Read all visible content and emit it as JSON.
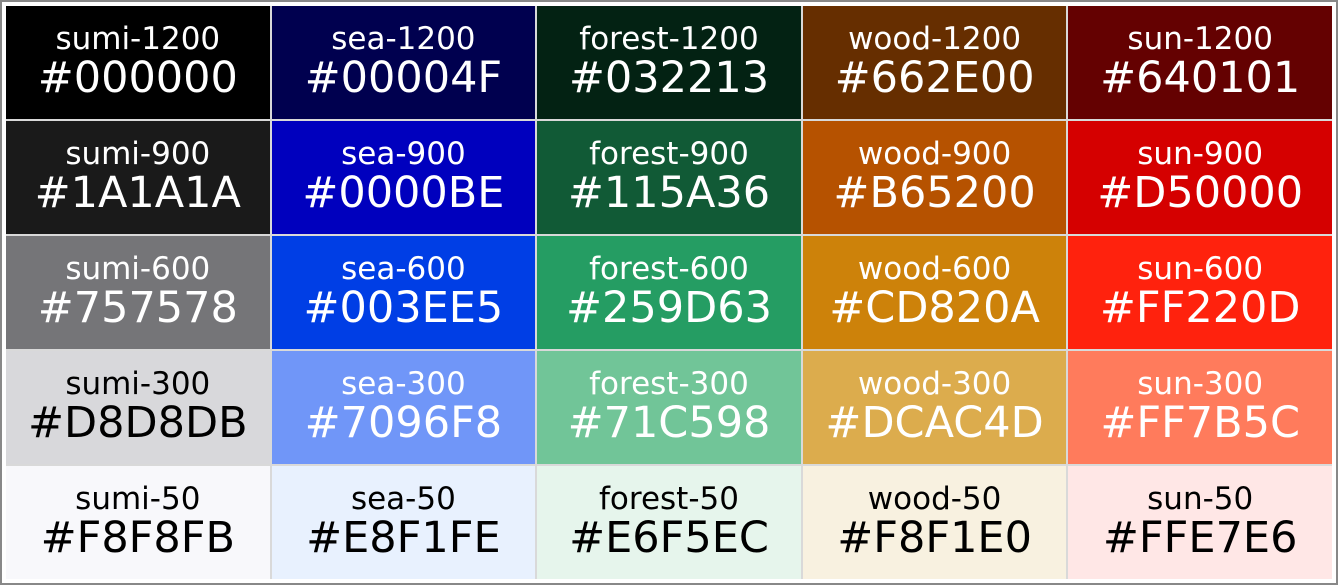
{
  "swatches": [
    [
      {
        "name": "sumi-1200",
        "hex": "#000000",
        "bg": "#000000",
        "fg": "#ffffff"
      },
      {
        "name": "sea-1200",
        "hex": "#00004F",
        "bg": "#00004F",
        "fg": "#ffffff"
      },
      {
        "name": "forest-1200",
        "hex": "#032213",
        "bg": "#032213",
        "fg": "#ffffff"
      },
      {
        "name": "wood-1200",
        "hex": "#662E00",
        "bg": "#662E00",
        "fg": "#ffffff"
      },
      {
        "name": "sun-1200",
        "hex": "#640101",
        "bg": "#640101",
        "fg": "#ffffff"
      }
    ],
    [
      {
        "name": "sumi-900",
        "hex": "#1A1A1A",
        "bg": "#1A1A1A",
        "fg": "#ffffff"
      },
      {
        "name": "sea-900",
        "hex": "#0000BE",
        "bg": "#0000BE",
        "fg": "#ffffff"
      },
      {
        "name": "forest-900",
        "hex": "#115A36",
        "bg": "#115A36",
        "fg": "#ffffff"
      },
      {
        "name": "wood-900",
        "hex": "#B65200",
        "bg": "#B65200",
        "fg": "#ffffff"
      },
      {
        "name": "sun-900",
        "hex": "#D50000",
        "bg": "#D50000",
        "fg": "#ffffff"
      }
    ],
    [
      {
        "name": "sumi-600",
        "hex": "#757578",
        "bg": "#757578",
        "fg": "#ffffff"
      },
      {
        "name": "sea-600",
        "hex": "#003EE5",
        "bg": "#003EE5",
        "fg": "#ffffff"
      },
      {
        "name": "forest-600",
        "hex": "#259D63",
        "bg": "#259D63",
        "fg": "#ffffff"
      },
      {
        "name": "wood-600",
        "hex": "#CD820A",
        "bg": "#CD820A",
        "fg": "#ffffff"
      },
      {
        "name": "sun-600",
        "hex": "#FF220D",
        "bg": "#FF220D",
        "fg": "#ffffff"
      }
    ],
    [
      {
        "name": "sumi-300",
        "hex": "#D8D8DB",
        "bg": "#D8D8DB",
        "fg": "#000000"
      },
      {
        "name": "sea-300",
        "hex": "#7096F8",
        "bg": "#7096F8",
        "fg": "#ffffff"
      },
      {
        "name": "forest-300",
        "hex": "#71C598",
        "bg": "#71C598",
        "fg": "#ffffff"
      },
      {
        "name": "wood-300",
        "hex": "#DCAC4D",
        "bg": "#DCAC4D",
        "fg": "#ffffff"
      },
      {
        "name": "sun-300",
        "hex": "#FF7B5C",
        "bg": "#FF7B5C",
        "fg": "#ffffff"
      }
    ],
    [
      {
        "name": "sumi-50",
        "hex": "#F8F8FB",
        "bg": "#F8F8FB",
        "fg": "#000000"
      },
      {
        "name": "sea-50",
        "hex": "#E8F1FE",
        "bg": "#E8F1FE",
        "fg": "#000000"
      },
      {
        "name": "forest-50",
        "hex": "#E6F5EC",
        "bg": "#E6F5EC",
        "fg": "#000000"
      },
      {
        "name": "wood-50",
        "hex": "#F8F1E0",
        "bg": "#F8F1E0",
        "fg": "#000000"
      },
      {
        "name": "sun-50",
        "hex": "#FFE7E6",
        "bg": "#FFE7E6",
        "fg": "#000000"
      }
    ]
  ]
}
